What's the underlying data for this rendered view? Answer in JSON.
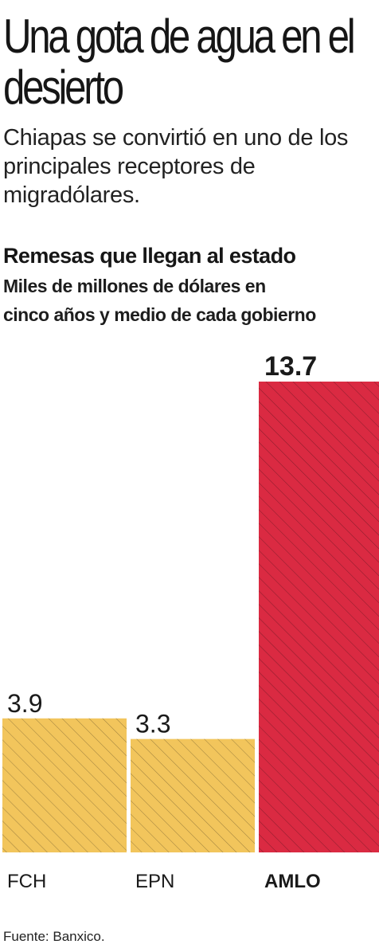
{
  "headline": "Una gota de agua en el desierto",
  "subtitle": "Chiapas se convirtió en uno de los principales receptores de migradólares.",
  "source": "Fuente: Banxico.",
  "colors": {
    "normal_bar": "#f2c55c",
    "highlight_bar": "#da2a42",
    "hatch": "#6f5a2a",
    "text": "#1a1a1a"
  },
  "chart_data": {
    "type": "bar",
    "title": "Remesas que llegan al estado",
    "subtitle_lines": [
      "Miles de millones de dólares en",
      "cinco años y medio de cada gobierno"
    ],
    "categories": [
      "FCH",
      "EPN",
      "AMLO"
    ],
    "values": [
      3.9,
      3.3,
      13.7
    ],
    "value_labels": [
      "3.9",
      "3.3",
      "13.7"
    ],
    "highlight": "AMLO",
    "ylim": [
      0,
      13.7
    ],
    "grid": false,
    "legend": "none"
  }
}
